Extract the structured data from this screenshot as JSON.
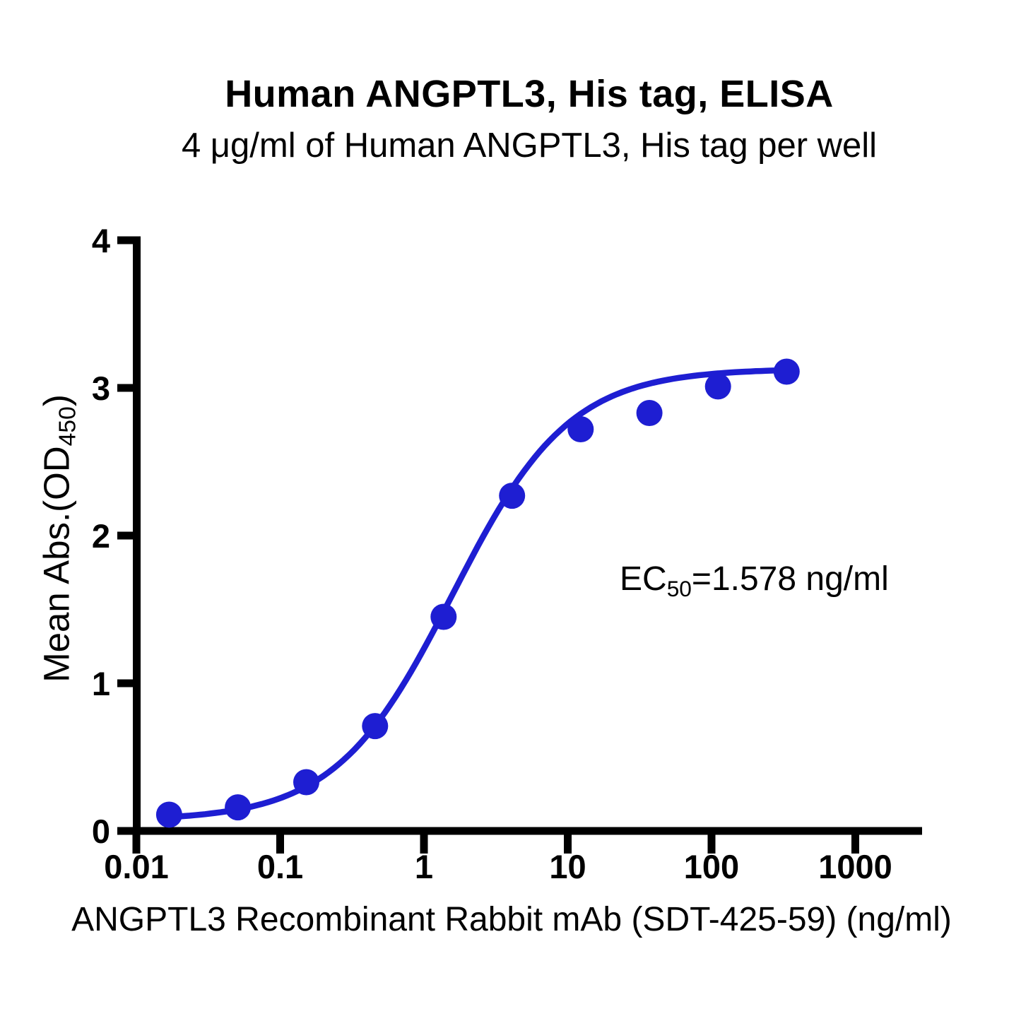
{
  "chart_data": {
    "type": "scatter",
    "title": "Human ANGPTL3, His tag, ELISA",
    "subtitle": "4 μg/ml of Human ANGPTL3, His tag per well",
    "xlabel": "ANGPTL3 Recombinant Rabbit mAb (SDT-425-59) (ng/ml)",
    "ylabel_main": "Mean Abs.(OD",
    "ylabel_sub": "450",
    "ylabel_close": ")",
    "x_scale": "log10",
    "x_tick_labels": [
      "0.01",
      "0.1",
      "1",
      "10",
      "100",
      "1000"
    ],
    "x_tick_values": [
      0.01,
      0.1,
      1,
      10,
      100,
      1000
    ],
    "y_tick_labels": [
      "0",
      "1",
      "2",
      "3",
      "4"
    ],
    "y_tick_values": [
      0,
      1,
      2,
      3,
      4
    ],
    "ylim": [
      0,
      4
    ],
    "xlim_log10": [
      -2,
      3.47
    ],
    "grid": false,
    "legend": "none",
    "series": [
      {
        "name": "Human ANGPTL3, His tag ELISA signal",
        "color": "#1e1ed2",
        "marker": "circle",
        "points": [
          {
            "x": 0.0169,
            "y": 0.11
          },
          {
            "x": 0.0508,
            "y": 0.16
          },
          {
            "x": 0.152,
            "y": 0.33
          },
          {
            "x": 0.457,
            "y": 0.71
          },
          {
            "x": 1.37,
            "y": 1.45
          },
          {
            "x": 4.1,
            "y": 2.27
          },
          {
            "x": 12.3,
            "y": 2.72
          },
          {
            "x": 37,
            "y": 2.83
          },
          {
            "x": 111,
            "y": 3.01
          },
          {
            "x": 333,
            "y": 3.11
          }
        ]
      }
    ],
    "fit_curve": {
      "model": "4PL",
      "bottom": 0.07,
      "top": 3.13,
      "ec50": 1.578,
      "hill": 1.07
    },
    "annotation": {
      "text_main": "EC",
      "text_sub": "50",
      "text_rest": "=1.578 ng/ml"
    },
    "ec50_value": "1.578 ng/ml",
    "axis_color": "#000000"
  }
}
